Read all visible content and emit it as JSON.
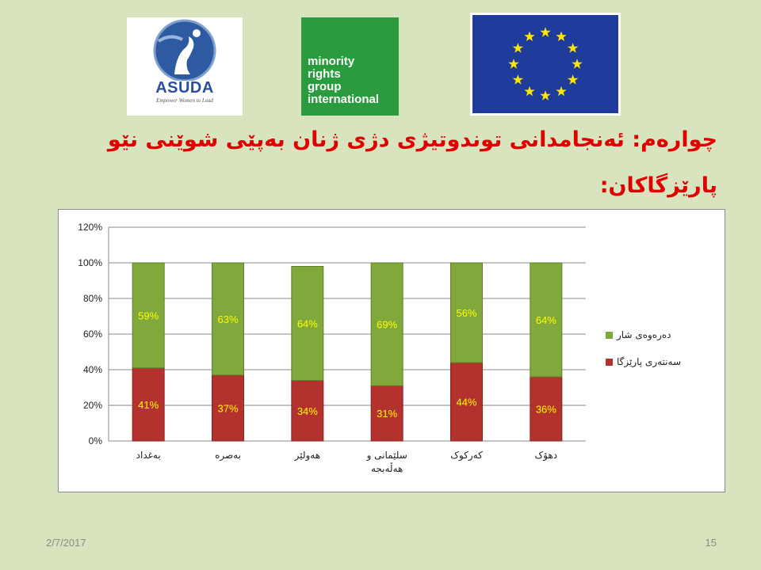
{
  "logos": {
    "asuda_name": "ASUDA",
    "asuda_tagline": "Empower Women to Lead",
    "mrg_lines": [
      "minority",
      "rights",
      "group",
      "international"
    ],
    "eu_colors": {
      "field": "#1f3b9c",
      "stars": "#ffe600"
    }
  },
  "title_lines": [
    "چوارەم: ئەنجامدانی توندوتیژی دژی ژنان بەپێی شوێنی نێو",
    "پارێزگاکان:"
  ],
  "chart_data": {
    "type": "bar",
    "stacked": true,
    "categories": [
      "بەغداد",
      "بەصرە",
      "هەولێر",
      "سلێمانی و هەڵەبجە",
      "کەرکوک",
      "دهۆک"
    ],
    "series": [
      {
        "name": "سەنتەری پارێزگا",
        "values": [
          41,
          37,
          34,
          31,
          44,
          36
        ],
        "labels": [
          "41%",
          "37%",
          "34%",
          "31%",
          "44%",
          "36%"
        ],
        "color": "#b4322e"
      },
      {
        "name": "دەرەوەی شار",
        "values": [
          59,
          63,
          64,
          69,
          56,
          64
        ],
        "labels": [
          "59%",
          "63%",
          "64%",
          "69%",
          "56%",
          "64%"
        ],
        "color": "#80a83a"
      }
    ],
    "y_ticks": [
      "0%",
      "20%",
      "40%",
      "60%",
      "80%",
      "100%",
      "120%"
    ],
    "ylim": [
      0,
      120
    ],
    "grid": true,
    "legend_position": "right",
    "data_label_color": "#ffff00"
  },
  "footer": {
    "date": "2/7/2017",
    "page": "15"
  }
}
